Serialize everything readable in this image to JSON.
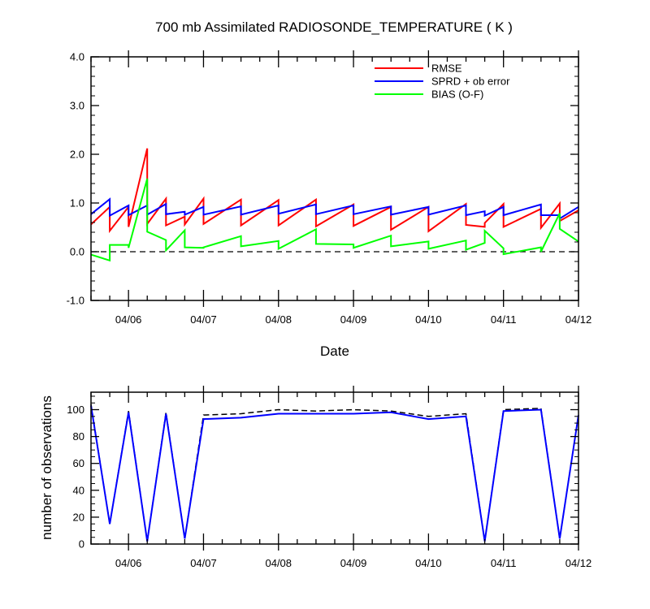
{
  "chart_data": [
    {
      "type": "line",
      "title": "700 mb Assimilated RADIOSONDE_TEMPERATURE ( K )",
      "xlabel": "Date",
      "ylabel": "",
      "ylim": [
        -1.0,
        4.0
      ],
      "xlim": [
        "04/05 12:00",
        "04/12 00:00"
      ],
      "yticks": [
        "-1.0",
        "0.0",
        "1.0",
        "2.0",
        "3.0",
        "4.0"
      ],
      "xticks": [
        "04/06",
        "04/07",
        "04/08",
        "04/09",
        "04/10",
        "04/11",
        "04/12"
      ],
      "reference_line": {
        "y": 0,
        "style": "dashed",
        "color": "#000000"
      },
      "legend": {
        "placement": "top-right"
      },
      "series": [
        {
          "name": "RMSE",
          "color": "#ff0000",
          "points": [
            [
              "04/05 12:00",
              0.56
            ],
            [
              "04/05 18:00",
              0.92
            ],
            [
              "04/05 18:00",
              0.43
            ],
            [
              "04/06 00:00",
              0.92
            ],
            [
              "04/06 00:00",
              0.51
            ],
            [
              "04/06 06:00",
              2.12
            ],
            [
              "04/06 06:00",
              0.57
            ],
            [
              "04/06 12:00",
              1.09
            ],
            [
              "04/06 12:00",
              0.54
            ],
            [
              "04/06 18:00",
              0.72
            ],
            [
              "04/06 18:00",
              0.56
            ],
            [
              "04/07 00:00",
              1.09
            ],
            [
              "04/07 00:00",
              0.57
            ],
            [
              "04/07 12:00",
              1.07
            ],
            [
              "04/07 12:00",
              0.54
            ],
            [
              "04/08 00:00",
              1.06
            ],
            [
              "04/08 00:00",
              0.54
            ],
            [
              "04/08 12:00",
              1.07
            ],
            [
              "04/08 12:00",
              0.52
            ],
            [
              "04/09 00:00",
              0.97
            ],
            [
              "04/09 00:00",
              0.53
            ],
            [
              "04/09 12:00",
              0.92
            ],
            [
              "04/09 12:00",
              0.45
            ],
            [
              "04/10 00:00",
              0.92
            ],
            [
              "04/10 00:00",
              0.42
            ],
            [
              "04/10 12:00",
              0.98
            ],
            [
              "04/10 12:00",
              0.55
            ],
            [
              "04/10 18:00",
              0.51
            ],
            [
              "04/10 18:00",
              0.59
            ],
            [
              "04/11 00:00",
              0.98
            ],
            [
              "04/11 00:00",
              0.51
            ],
            [
              "04/11 12:00",
              0.88
            ],
            [
              "04/11 12:00",
              0.49
            ],
            [
              "04/11 18:00",
              0.99
            ],
            [
              "04/11 18:00",
              0.63
            ],
            [
              "04/12 00:00",
              0.85
            ]
          ]
        },
        {
          "name": "SPRD + ob error",
          "color": "#0000ff",
          "points": [
            [
              "04/05 12:00",
              0.77
            ],
            [
              "04/05 18:00",
              1.08
            ],
            [
              "04/05 18:00",
              0.74
            ],
            [
              "04/06 00:00",
              0.95
            ],
            [
              "04/06 00:00",
              0.75
            ],
            [
              "04/06 06:00",
              0.95
            ],
            [
              "04/06 06:00",
              0.76
            ],
            [
              "04/06 12:00",
              0.98
            ],
            [
              "04/06 12:00",
              0.77
            ],
            [
              "04/06 18:00",
              0.82
            ],
            [
              "04/06 18:00",
              0.76
            ],
            [
              "04/07 00:00",
              0.92
            ],
            [
              "04/07 00:00",
              0.76
            ],
            [
              "04/07 12:00",
              0.93
            ],
            [
              "04/07 12:00",
              0.76
            ],
            [
              "04/08 00:00",
              0.95
            ],
            [
              "04/08 00:00",
              0.78
            ],
            [
              "04/08 12:00",
              0.97
            ],
            [
              "04/08 12:00",
              0.77
            ],
            [
              "04/09 00:00",
              0.95
            ],
            [
              "04/09 00:00",
              0.77
            ],
            [
              "04/09 12:00",
              0.93
            ],
            [
              "04/09 12:00",
              0.76
            ],
            [
              "04/10 00:00",
              0.92
            ],
            [
              "04/10 00:00",
              0.76
            ],
            [
              "04/10 12:00",
              0.95
            ],
            [
              "04/10 12:00",
              0.75
            ],
            [
              "04/10 18:00",
              0.83
            ],
            [
              "04/10 18:00",
              0.74
            ],
            [
              "04/11 00:00",
              0.92
            ],
            [
              "04/11 00:00",
              0.75
            ],
            [
              "04/11 12:00",
              0.97
            ],
            [
              "04/11 12:00",
              0.75
            ],
            [
              "04/11 18:00",
              0.75
            ],
            [
              "04/11 18:00",
              0.68
            ],
            [
              "04/12 00:00",
              0.92
            ]
          ]
        },
        {
          "name": "BIAS (O-F)",
          "color": "#00ff00",
          "points": [
            [
              "04/05 12:00",
              -0.06
            ],
            [
              "04/05 18:00",
              -0.18
            ],
            [
              "04/05 18:00",
              0.14
            ],
            [
              "04/06 00:00",
              0.14
            ],
            [
              "04/06 00:00",
              0.08
            ],
            [
              "04/06 06:00",
              1.5
            ],
            [
              "04/06 06:00",
              0.41
            ],
            [
              "04/06 12:00",
              0.24
            ],
            [
              "04/06 12:00",
              0.03
            ],
            [
              "04/06 18:00",
              0.44
            ],
            [
              "04/06 18:00",
              0.09
            ],
            [
              "04/07 00:00",
              0.08
            ],
            [
              "04/07 00:00",
              0.09
            ],
            [
              "04/07 12:00",
              0.32
            ],
            [
              "04/07 12:00",
              0.11
            ],
            [
              "04/08 00:00",
              0.22
            ],
            [
              "04/08 00:00",
              0.06
            ],
            [
              "04/08 12:00",
              0.46
            ],
            [
              "04/08 12:00",
              0.16
            ],
            [
              "04/09 00:00",
              0.15
            ],
            [
              "04/09 00:00",
              0.08
            ],
            [
              "04/09 12:00",
              0.33
            ],
            [
              "04/09 12:00",
              0.11
            ],
            [
              "04/10 00:00",
              0.21
            ],
            [
              "04/10 00:00",
              0.06
            ],
            [
              "04/10 12:00",
              0.23
            ],
            [
              "04/10 12:00",
              0.04
            ],
            [
              "04/10 18:00",
              0.18
            ],
            [
              "04/10 18:00",
              0.43
            ],
            [
              "04/11 00:00",
              0.07
            ],
            [
              "04/11 00:00",
              -0.05
            ],
            [
              "04/11 12:00",
              0.09
            ],
            [
              "04/11 12:00",
              0.0
            ],
            [
              "04/11 18:00",
              0.79
            ],
            [
              "04/11 18:00",
              0.47
            ],
            [
              "04/12 00:00",
              0.21
            ]
          ]
        }
      ]
    },
    {
      "type": "line",
      "title": "",
      "xlabel": "",
      "ylabel": "number of observations",
      "ylim": [
        0,
        113
      ],
      "xlim": [
        "04/05 12:00",
        "04/12 00:00"
      ],
      "yticks": [
        "0",
        "20",
        "40",
        "60",
        "80",
        "100"
      ],
      "xticks": [
        "04/06",
        "04/07",
        "04/08",
        "04/09",
        "04/10",
        "04/11",
        "04/12"
      ],
      "series": [
        {
          "style": "dashed",
          "color": "#000000",
          "points": [
            [
              "04/05 12:00",
              104
            ],
            [
              "04/05 18:00",
              15
            ],
            [
              "04/06 00:00",
              99
            ],
            [
              "04/06 06:00",
              2
            ],
            [
              "04/06 12:00",
              98
            ],
            [
              "04/06 18:00",
              4
            ],
            [
              "04/07 00:00",
              96
            ],
            [
              "04/07 12:00",
              97
            ],
            [
              "04/08 00:00",
              100
            ],
            [
              "04/08 12:00",
              99
            ],
            [
              "04/09 00:00",
              100
            ],
            [
              "04/09 12:00",
              99
            ],
            [
              "04/10 00:00",
              95
            ],
            [
              "04/10 12:00",
              97
            ],
            [
              "04/10 18:00",
              2
            ],
            [
              "04/11 00:00",
              100
            ],
            [
              "04/11 12:00",
              101
            ],
            [
              "04/11 18:00",
              4
            ],
            [
              "04/12 00:00",
              96
            ]
          ]
        },
        {
          "style": "solid",
          "color": "#0000ff",
          "points": [
            [
              "04/05 12:00",
              103
            ],
            [
              "04/05 18:00",
              15
            ],
            [
              "04/06 00:00",
              98
            ],
            [
              "04/06 06:00",
              2
            ],
            [
              "04/06 12:00",
              97
            ],
            [
              "04/06 18:00",
              4
            ],
            [
              "04/07 00:00",
              93
            ],
            [
              "04/07 12:00",
              94
            ],
            [
              "04/08 00:00",
              97
            ],
            [
              "04/08 12:00",
              97
            ],
            [
              "04/09 00:00",
              97
            ],
            [
              "04/09 12:00",
              98
            ],
            [
              "04/10 00:00",
              93
            ],
            [
              "04/10 12:00",
              95
            ],
            [
              "04/10 18:00",
              2
            ],
            [
              "04/11 00:00",
              99
            ],
            [
              "04/11 12:00",
              100
            ],
            [
              "04/11 18:00",
              4
            ],
            [
              "04/12 00:00",
              96
            ]
          ]
        }
      ]
    }
  ]
}
